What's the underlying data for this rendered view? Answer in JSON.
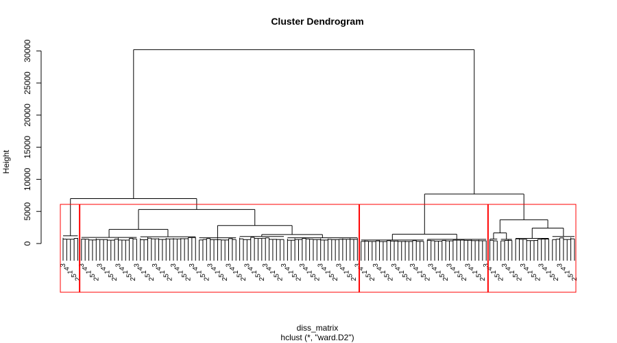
{
  "chart_data": {
    "type": "dendrogram",
    "title": "Cluster Dendrogram",
    "ylabel": "Height",
    "xlabel": "diss_matrix",
    "sub": "hclust (*, \"ward.D2\")",
    "ylim": [
      0,
      31000
    ],
    "yticks": [
      0,
      5000,
      10000,
      15000,
      20000,
      25000,
      30000
    ],
    "ytick_labels": [
      "0",
      "5000",
      "10000",
      "15000",
      "20000",
      "25000",
      "30000"
    ],
    "leaf_labels_sample": [
      "3",
      "4",
      "1",
      "5",
      "2"
    ],
    "clusters_shown": 4,
    "cut_height": 6100,
    "rect_color": "#ff0000",
    "tree": {
      "height": 30200,
      "children": [
        {
          "height": 7000,
          "children": [
            {
              "height": 1200,
              "leaves": 5
            },
            {
              "height": 5300,
              "children": [
                {
                  "height": 2200,
                  "children": [
                    {
                      "height": 950,
                      "leaves": 16
                    },
                    {
                      "height": 1050,
                      "leaves": 16
                    }
                  ]
                },
                {
                  "height": 2800,
                  "children": [
                    {
                      "height": 900,
                      "leaves": 11
                    },
                    {
                      "height": 1400,
                      "children": [
                        {
                          "height": 1100,
                          "leaves": 13
                        },
                        {
                          "height": 900,
                          "leaves": 20
                        }
                      ]
                    }
                  ]
                }
              ]
            }
          ]
        },
        {
          "height": 7700,
          "children": [
            {
              "height": 1450,
              "children": [
                {
                  "height": 550,
                  "leaves": 18
                },
                {
                  "height": 650,
                  "leaves": 17
                }
              ]
            },
            {
              "height": 3700,
              "children": [
                {
                  "height": 1650,
                  "children": [
                    {
                      "height": 700,
                      "leaves": 3
                    },
                    {
                      "height": 650,
                      "leaves": 4
                    }
                  ]
                },
                {
                  "height": 2400,
                  "children": [
                    {
                      "height": 800,
                      "leaves": 10
                    },
                    {
                      "height": 1100,
                      "leaves": 7
                    }
                  ]
                }
              ]
            }
          ]
        }
      ]
    }
  }
}
